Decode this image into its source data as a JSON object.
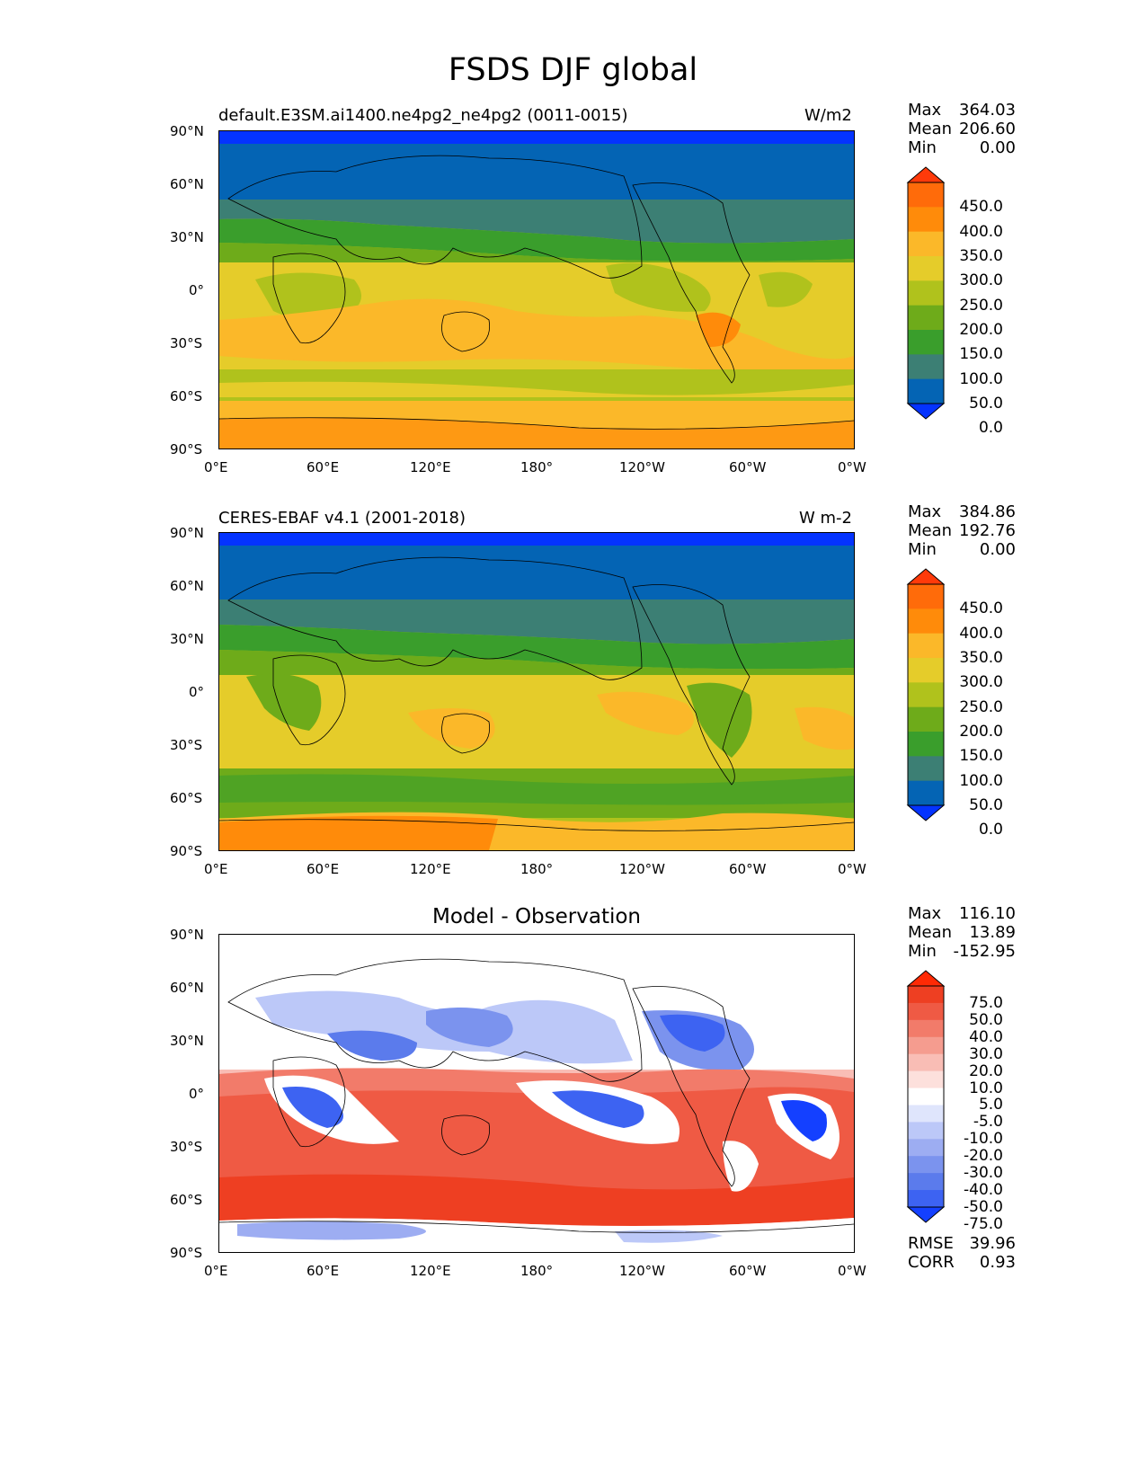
{
  "figure_title": "FSDS DJF global",
  "axes": {
    "lat_ticks": [
      "90°N",
      "60°N",
      "30°N",
      "0°",
      "30°S",
      "60°S",
      "90°S"
    ],
    "lon_ticks": [
      "0°E",
      "60°E",
      "120°E",
      "180°",
      "120°W",
      "60°W",
      "0°W"
    ]
  },
  "colors": {
    "abs_levels": [
      "#0433ff",
      "#0464b4",
      "#3c7f74",
      "#3a9e2c",
      "#6eab1a",
      "#b0c21c",
      "#e5cc2a",
      "#fbb829",
      "#ff8b0a",
      "#ff6b0a",
      "#ff3a0a"
    ],
    "diff_levels": [
      "#1440ff",
      "#3d63f2",
      "#5b7bec",
      "#7b93ee",
      "#9dadf2",
      "#bcc8f8",
      "#dfe5fc",
      "#ffffff",
      "#fde0dc",
      "#f9bdb5",
      "#f59c8f",
      "#f27b6a",
      "#ef5a44",
      "#ee3f22",
      "#ff2a05"
    ]
  },
  "panels": [
    {
      "left_title": "default.E3SM.ai1400.ne4pg2_ne4pg2 (0011-0015)",
      "right_title": "W/m2",
      "stats": [
        {
          "label": "Max",
          "value": "364.03"
        },
        {
          "label": "Mean",
          "value": "206.60"
        },
        {
          "label": "Min",
          "value": "0.00"
        }
      ],
      "colorbar_labels": [
        "450.0",
        "400.0",
        "350.0",
        "300.0",
        "250.0",
        "200.0",
        "150.0",
        "100.0",
        "50.0",
        "0.0"
      ]
    },
    {
      "left_title": "CERES-EBAF v4.1 (2001-2018)",
      "right_title": "W m-2",
      "stats": [
        {
          "label": "Max",
          "value": "384.86"
        },
        {
          "label": "Mean",
          "value": "192.76"
        },
        {
          "label": "Min",
          "value": "0.00"
        }
      ],
      "colorbar_labels": [
        "450.0",
        "400.0",
        "350.0",
        "300.0",
        "250.0",
        "200.0",
        "150.0",
        "100.0",
        "50.0",
        "0.0"
      ]
    },
    {
      "center_title": "Model - Observation",
      "stats": [
        {
          "label": "Max",
          "value": "116.10"
        },
        {
          "label": "Mean",
          "value": "13.89"
        },
        {
          "label": "Min",
          "value": "-152.95"
        }
      ],
      "colorbar_labels": [
        "75.0",
        "50.0",
        "40.0",
        "30.0",
        "20.0",
        "10.0",
        "5.0",
        "-5.0",
        "-10.0",
        "-20.0",
        "-30.0",
        "-40.0",
        "-50.0",
        "-75.0"
      ],
      "extra_stats": [
        {
          "label": "RMSE",
          "value": "39.96"
        },
        {
          "label": "CORR",
          "value": "0.93"
        }
      ]
    }
  ]
}
